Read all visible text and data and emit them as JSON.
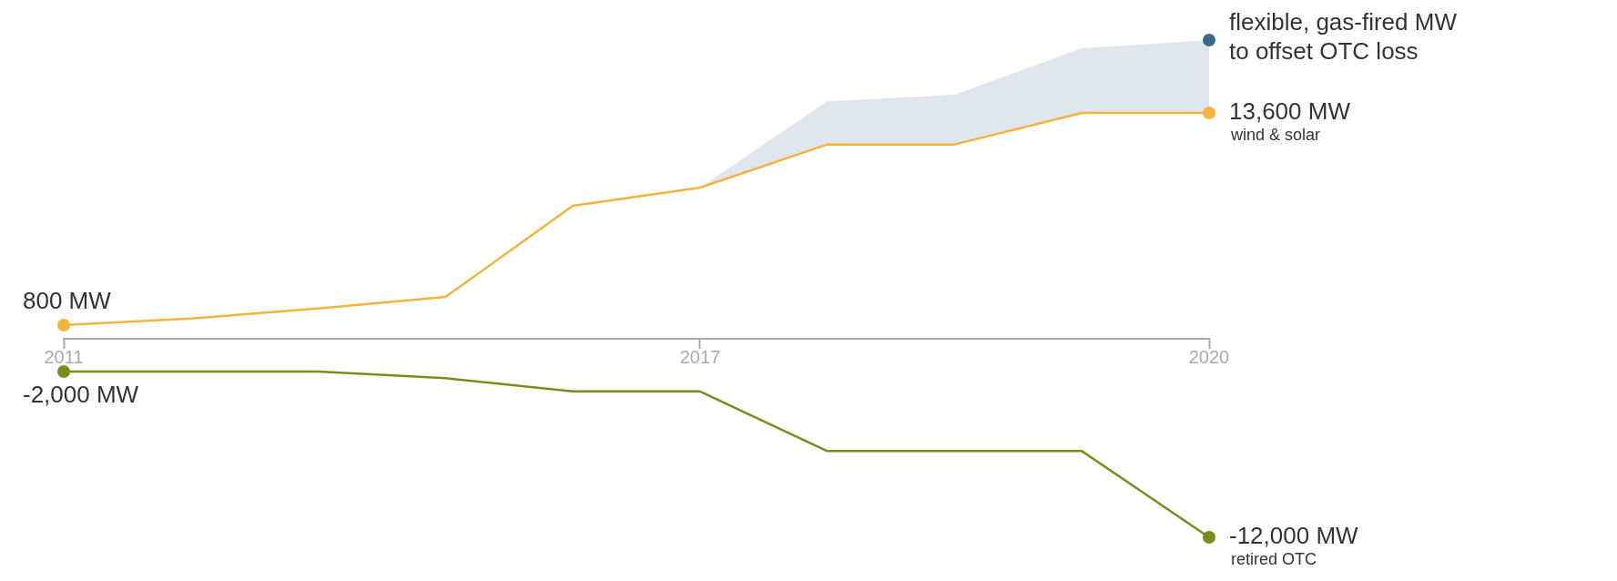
{
  "chart_data": {
    "type": "line",
    "categories": [
      "2011",
      null,
      null,
      null,
      null,
      "2017",
      null,
      null,
      null,
      "2020"
    ],
    "series": [
      {
        "name": "flexible, gas-fired MW to offset OTC loss",
        "type": "area",
        "color": "#3b6a8f",
        "values": [
          null,
          null,
          null,
          null,
          null,
          9100,
          14300,
          14700,
          17500,
          18000
        ]
      },
      {
        "name": "wind & solar",
        "color": "#f2b43c",
        "values": [
          800,
          1200,
          1800,
          2500,
          8000,
          9100,
          11700,
          11700,
          13600,
          13600
        ],
        "value_labels": [
          "800 MW",
          null,
          null,
          null,
          null,
          null,
          null,
          null,
          null,
          "13,600 MW"
        ]
      },
      {
        "name": "retired OTC",
        "color": "#7d8a1c",
        "values": [
          -2000,
          -2000,
          -2000,
          -2400,
          -3200,
          -3200,
          -6800,
          -6800,
          -6800,
          -12000
        ],
        "value_labels": [
          "-2,000 MW",
          null,
          null,
          null,
          null,
          null,
          null,
          null,
          null,
          "-12,000 MW"
        ]
      }
    ],
    "legend": false
  }
}
